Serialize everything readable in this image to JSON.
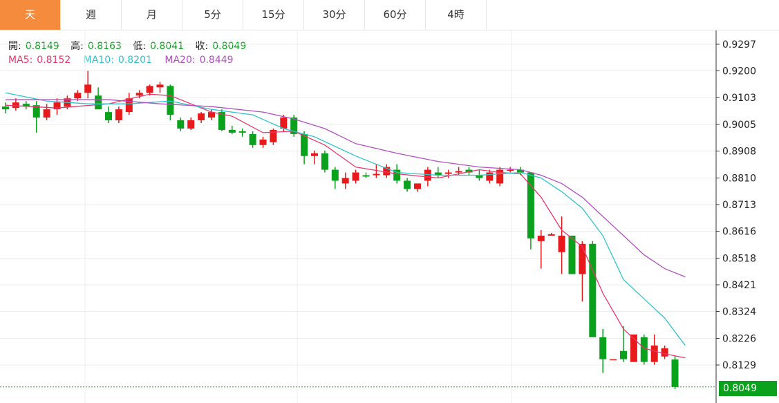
{
  "tabs": [
    {
      "label": "天",
      "active": true
    },
    {
      "label": "週",
      "active": false
    },
    {
      "label": "月",
      "active": false
    },
    {
      "label": "5分",
      "active": false
    },
    {
      "label": "15分",
      "active": false
    },
    {
      "label": "30分",
      "active": false
    },
    {
      "label": "60分",
      "active": false
    },
    {
      "label": "4時",
      "active": false
    }
  ],
  "ohlc": {
    "open_label": "開:",
    "open": "0.8149",
    "high_label": "高:",
    "high": "0.8163",
    "low_label": "低:",
    "low": "0.8041",
    "close_label": "收:",
    "close": "0.8049"
  },
  "ma": {
    "ma5_label": "MA5:",
    "ma5": "0.8152",
    "ma10_label": "MA10:",
    "ma10": "0.8201",
    "ma20_label": "MA20:",
    "ma20": "0.8449"
  },
  "colors": {
    "up": "#e8191b",
    "down": "#0aa21c",
    "ma5": "#e8376d",
    "ma10": "#2ec4cc",
    "ma20": "#b04fc0",
    "accent": "#f58b3c"
  },
  "current_price": "0.8049",
  "chart_data": {
    "type": "candlestick",
    "y_ticks": [
      "0.9297",
      "0.9200",
      "0.9103",
      "0.9005",
      "0.8908",
      "0.8810",
      "0.8713",
      "0.8616",
      "0.8518",
      "0.8421",
      "0.8324",
      "0.8226",
      "0.8129"
    ],
    "ylim": [
      0.8041,
      0.933
    ],
    "grid": true,
    "candles": [
      [
        0.907,
        0.9085,
        0.9045,
        0.906
      ],
      [
        0.9065,
        0.91,
        0.9055,
        0.9085
      ],
      [
        0.908,
        0.909,
        0.906,
        0.907
      ],
      [
        0.9075,
        0.909,
        0.8975,
        0.903
      ],
      [
        0.903,
        0.908,
        0.902,
        0.906
      ],
      [
        0.906,
        0.91,
        0.904,
        0.9085
      ],
      [
        0.907,
        0.911,
        0.906,
        0.91
      ],
      [
        0.91,
        0.913,
        0.909,
        0.912
      ],
      [
        0.912,
        0.92,
        0.91,
        0.915
      ],
      [
        0.911,
        0.914,
        0.906,
        0.906
      ],
      [
        0.905,
        0.907,
        0.901,
        0.902
      ],
      [
        0.902,
        0.907,
        0.901,
        0.906
      ],
      [
        0.905,
        0.912,
        0.904,
        0.91
      ],
      [
        0.911,
        0.913,
        0.91,
        0.912
      ],
      [
        0.912,
        0.915,
        0.911,
        0.9145
      ],
      [
        0.914,
        0.916,
        0.912,
        0.915
      ],
      [
        0.9145,
        0.915,
        0.902,
        0.904
      ],
      [
        0.902,
        0.903,
        0.898,
        0.899
      ],
      [
        0.899,
        0.903,
        0.8985,
        0.902
      ],
      [
        0.902,
        0.905,
        0.901,
        0.9045
      ],
      [
        0.903,
        0.906,
        0.902,
        0.905
      ],
      [
        0.905,
        0.906,
        0.898,
        0.8985
      ],
      [
        0.8985,
        0.9,
        0.897,
        0.8975
      ],
      [
        0.898,
        0.899,
        0.896,
        0.8975
      ],
      [
        0.897,
        0.898,
        0.892,
        0.893
      ],
      [
        0.893,
        0.896,
        0.892,
        0.895
      ],
      [
        0.894,
        0.899,
        0.893,
        0.8985
      ],
      [
        0.899,
        0.904,
        0.898,
        0.903
      ],
      [
        0.903,
        0.904,
        0.896,
        0.897
      ],
      [
        0.897,
        0.898,
        0.886,
        0.889
      ],
      [
        0.889,
        0.891,
        0.886,
        0.89
      ],
      [
        0.89,
        0.891,
        0.883,
        0.884
      ],
      [
        0.884,
        0.885,
        0.877,
        0.88
      ],
      [
        0.879,
        0.883,
        0.877,
        0.881
      ],
      [
        0.88,
        0.884,
        0.879,
        0.883
      ],
      [
        0.882,
        0.883,
        0.881,
        0.8815
      ],
      [
        0.882,
        0.886,
        0.881,
        0.8825
      ],
      [
        0.882,
        0.886,
        0.881,
        0.885
      ],
      [
        0.884,
        0.886,
        0.879,
        0.88
      ],
      [
        0.88,
        0.881,
        0.876,
        0.877
      ],
      [
        0.877,
        0.879,
        0.876,
        0.879
      ],
      [
        0.88,
        0.885,
        0.878,
        0.884
      ],
      [
        0.883,
        0.885,
        0.881,
        0.882
      ],
      [
        0.8825,
        0.884,
        0.881,
        0.883
      ],
      [
        0.883,
        0.885,
        0.882,
        0.8835
      ],
      [
        0.884,
        0.885,
        0.882,
        0.883
      ],
      [
        0.882,
        0.884,
        0.88,
        0.881
      ],
      [
        0.88,
        0.884,
        0.879,
        0.883
      ],
      [
        0.879,
        0.885,
        0.878,
        0.884
      ],
      [
        0.884,
        0.885,
        0.883,
        0.884
      ],
      [
        0.884,
        0.885,
        0.882,
        0.883
      ],
      [
        0.883,
        0.883,
        0.855,
        0.859
      ],
      [
        0.858,
        0.862,
        0.848,
        0.86
      ],
      [
        0.86,
        0.861,
        0.86,
        0.8605
      ],
      [
        0.854,
        0.867,
        0.846,
        0.86
      ],
      [
        0.86,
        0.86,
        0.846,
        0.846
      ],
      [
        0.846,
        0.858,
        0.836,
        0.857
      ],
      [
        0.857,
        0.858,
        0.823,
        0.823
      ],
      [
        0.823,
        0.826,
        0.81,
        0.815
      ],
      [
        0.815,
        0.815,
        0.815,
        0.815
      ],
      [
        0.818,
        0.827,
        0.814,
        0.815
      ],
      [
        0.814,
        0.824,
        0.814,
        0.824
      ],
      [
        0.823,
        0.824,
        0.813,
        0.814
      ],
      [
        0.814,
        0.824,
        0.813,
        0.82
      ],
      [
        0.816,
        0.82,
        0.815,
        0.819
      ],
      [
        0.8149,
        0.8163,
        0.8041,
        0.8049
      ]
    ],
    "series": [
      {
        "name": "MA5",
        "points": [
          [
            0,
            0.9075
          ],
          [
            5,
            0.9065
          ],
          [
            10,
            0.908
          ],
          [
            14,
            0.9115
          ],
          [
            16,
            0.911
          ],
          [
            20,
            0.905
          ],
          [
            22,
            0.9035
          ],
          [
            25,
            0.8975
          ],
          [
            28,
            0.898
          ],
          [
            31,
            0.893
          ],
          [
            34,
            0.885
          ],
          [
            38,
            0.8825
          ],
          [
            42,
            0.881
          ],
          [
            46,
            0.884
          ],
          [
            48,
            0.883
          ],
          [
            50,
            0.8825
          ],
          [
            52,
            0.874
          ],
          [
            54,
            0.862
          ],
          [
            56,
            0.856
          ],
          [
            58,
            0.839
          ],
          [
            60,
            0.826
          ],
          [
            62,
            0.819
          ],
          [
            64,
            0.817
          ],
          [
            66,
            0.8155
          ]
        ]
      },
      {
        "name": "MA10",
        "points": [
          [
            0,
            0.912
          ],
          [
            4,
            0.909
          ],
          [
            8,
            0.908
          ],
          [
            12,
            0.908
          ],
          [
            16,
            0.909
          ],
          [
            20,
            0.906
          ],
          [
            24,
            0.904
          ],
          [
            27,
            0.899
          ],
          [
            30,
            0.896
          ],
          [
            34,
            0.889
          ],
          [
            38,
            0.883
          ],
          [
            42,
            0.882
          ],
          [
            46,
            0.882
          ],
          [
            50,
            0.883
          ],
          [
            52,
            0.881
          ],
          [
            54,
            0.876
          ],
          [
            56,
            0.87
          ],
          [
            58,
            0.86
          ],
          [
            60,
            0.844
          ],
          [
            62,
            0.837
          ],
          [
            64,
            0.83
          ],
          [
            66,
            0.82
          ]
        ]
      },
      {
        "name": "MA20",
        "points": [
          [
            0,
            0.9095
          ],
          [
            10,
            0.9095
          ],
          [
            15,
            0.908
          ],
          [
            20,
            0.907
          ],
          [
            25,
            0.905
          ],
          [
            28,
            0.9025
          ],
          [
            31,
            0.899
          ],
          [
            34,
            0.8935
          ],
          [
            38,
            0.89
          ],
          [
            42,
            0.887
          ],
          [
            46,
            0.885
          ],
          [
            50,
            0.884
          ],
          [
            52,
            0.882
          ],
          [
            54,
            0.879
          ],
          [
            56,
            0.874
          ],
          [
            58,
            0.867
          ],
          [
            60,
            0.86
          ],
          [
            62,
            0.853
          ],
          [
            64,
            0.848
          ],
          [
            66,
            0.845
          ]
        ]
      }
    ]
  }
}
